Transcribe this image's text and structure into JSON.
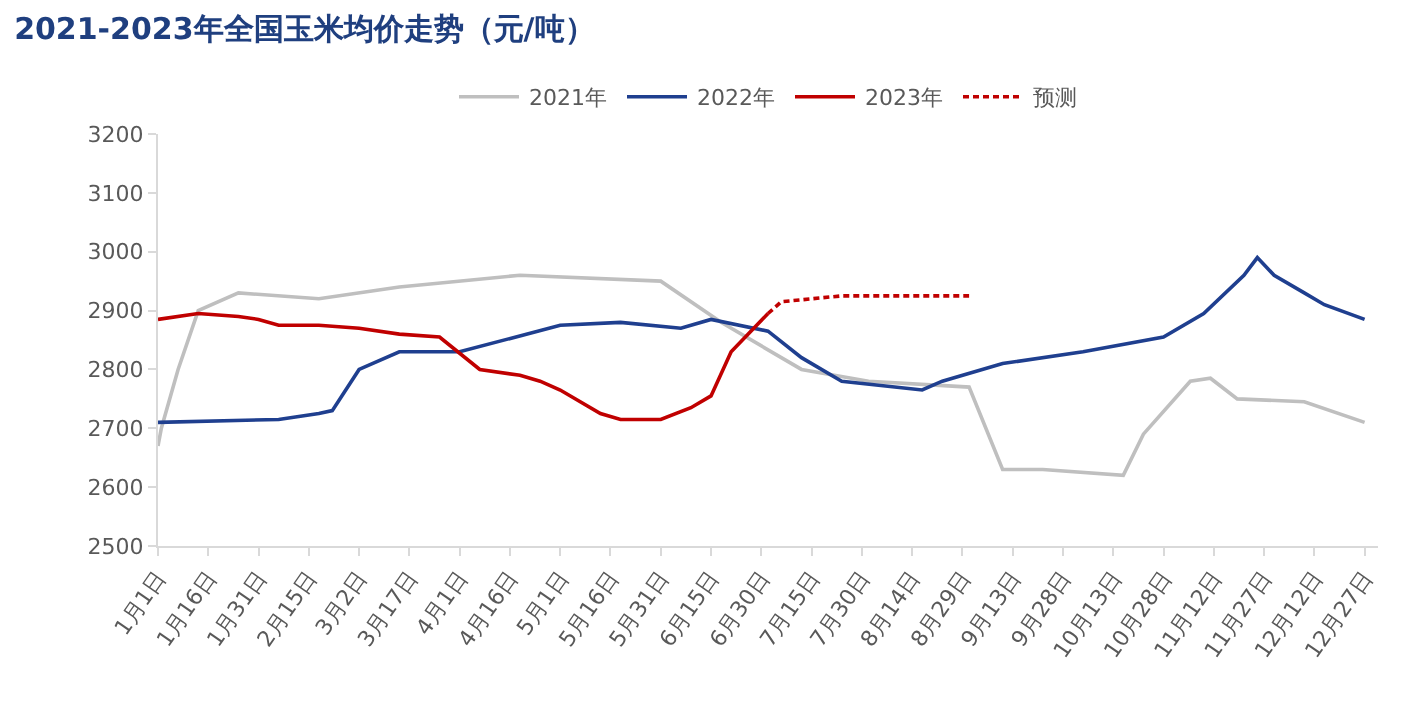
{
  "chart_data": {
    "type": "line",
    "title": "2021-2023年全国玉米均价走势（元/吨）",
    "series": [
      {
        "name": "2021年",
        "color": "#bfbfbf",
        "x": [
          "--01-01",
          "--01-02",
          "--01-07",
          "--01-13",
          "--01-25",
          "--02-18",
          "--03-14",
          "--04-19",
          "--05-31",
          "--06-18",
          "--07-12",
          "--08-01",
          "--08-31",
          "--09-10",
          "--09-22",
          "--10-16",
          "--10-22",
          "--11-05",
          "--11-11",
          "--11-19",
          "--12-09",
          "--12-27"
        ],
        "values": [
          2670,
          2700,
          2800,
          2900,
          2930,
          2920,
          2940,
          2960,
          2950,
          2880,
          2800,
          2780,
          2770,
          2630,
          2630,
          2620,
          2690,
          2780,
          2785,
          2750,
          2745,
          2710
        ]
      },
      {
        "name": "2022年",
        "color": "#1f3f8f",
        "x": [
          "--01-01",
          "--02-06",
          "--02-18",
          "--02-22",
          "--03-02",
          "--03-14",
          "--04-01",
          "--05-01",
          "--05-19",
          "--06-06",
          "--06-15",
          "--07-02",
          "--07-12",
          "--07-24",
          "--08-17",
          "--08-23",
          "--09-10",
          "--10-04",
          "--10-28",
          "--11-09",
          "--11-21",
          "--11-25",
          "--11-30",
          "--12-09",
          "--12-15",
          "--12-27"
        ],
        "values": [
          2710,
          2715,
          2725,
          2730,
          2800,
          2830,
          2830,
          2875,
          2880,
          2870,
          2885,
          2865,
          2820,
          2780,
          2765,
          2780,
          2810,
          2830,
          2855,
          2895,
          2960,
          2990,
          2960,
          2930,
          2910,
          2885
        ]
      },
      {
        "name": "2023年",
        "color": "#c00000",
        "x": [
          "--01-01",
          "--01-13",
          "--01-25",
          "--01-31",
          "--02-06",
          "--02-18",
          "--03-02",
          "--03-14",
          "--03-26",
          "--04-07",
          "--04-19",
          "--04-25",
          "--05-01",
          "--05-13",
          "--05-19",
          "--05-31",
          "--06-09",
          "--06-15",
          "--06-21",
          "--07-02"
        ],
        "values": [
          2885,
          2895,
          2890,
          2885,
          2875,
          2875,
          2870,
          2860,
          2855,
          2800,
          2790,
          2780,
          2765,
          2725,
          2715,
          2715,
          2735,
          2755,
          2830,
          2895
        ]
      },
      {
        "name": "预测",
        "color": "#c00000",
        "line_style": "dashed",
        "x": [
          "--07-02",
          "--07-06",
          "--07-24",
          "--08-31"
        ],
        "values": [
          2895,
          2915,
          2925,
          2925
        ]
      }
    ],
    "xlim": [
      "--01-01",
      "--12-31"
    ],
    "xticks": [
      {
        "value": "--01-01",
        "label": "1月1日"
      },
      {
        "value": "--01-16",
        "label": "1月16日"
      },
      {
        "value": "--01-31",
        "label": "1月31日"
      },
      {
        "value": "--02-15",
        "label": "2月15日"
      },
      {
        "value": "--03-02",
        "label": "3月2日"
      },
      {
        "value": "--03-17",
        "label": "3月17日"
      },
      {
        "value": "--04-01",
        "label": "4月1日"
      },
      {
        "value": "--04-16",
        "label": "4月16日"
      },
      {
        "value": "--05-01",
        "label": "5月1日"
      },
      {
        "value": "--05-16",
        "label": "5月16日"
      },
      {
        "value": "--05-31",
        "label": "5月31日"
      },
      {
        "value": "--06-15",
        "label": "6月15日"
      },
      {
        "value": "--06-30",
        "label": "6月30日"
      },
      {
        "value": "--07-15",
        "label": "7月15日"
      },
      {
        "value": "--07-30",
        "label": "7月30日"
      },
      {
        "value": "--08-14",
        "label": "8月14日"
      },
      {
        "value": "--08-29",
        "label": "8月29日"
      },
      {
        "value": "--09-13",
        "label": "9月13日"
      },
      {
        "value": "--09-28",
        "label": "9月28日"
      },
      {
        "value": "--10-13",
        "label": "10月13日"
      },
      {
        "value": "--10-28",
        "label": "10月28日"
      },
      {
        "value": "--11-12",
        "label": "11月12日"
      },
      {
        "value": "--11-27",
        "label": "11月27日"
      },
      {
        "value": "--12-12",
        "label": "12月12日"
      },
      {
        "value": "--12-27",
        "label": "12月27日"
      }
    ],
    "ylim": [
      2500,
      3200
    ],
    "yticks": [
      2500,
      2600,
      2700,
      2800,
      2900,
      3000,
      3100,
      3200
    ],
    "grid": false,
    "legend": "top",
    "line_style": "solid",
    "marker": "none"
  }
}
